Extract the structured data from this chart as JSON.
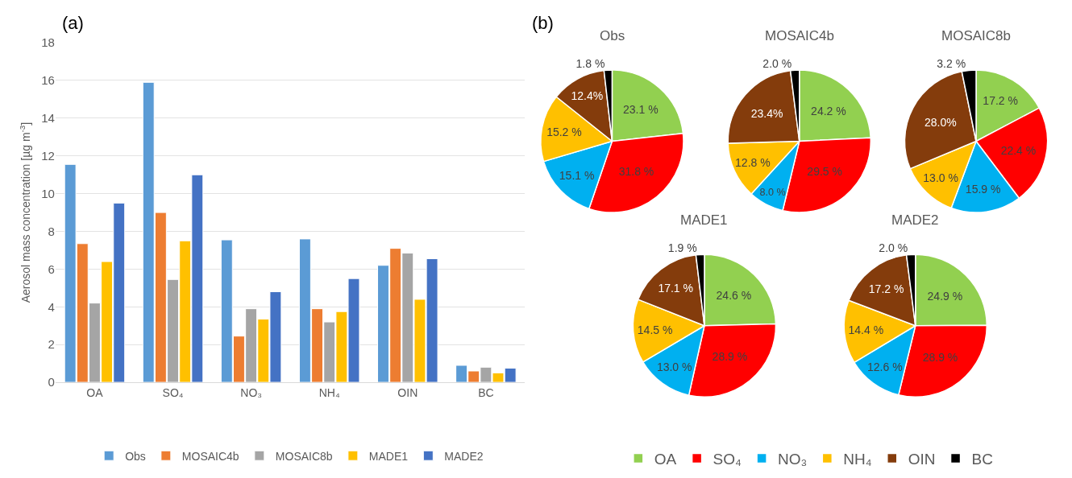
{
  "chart_data": [
    {
      "type": "bar",
      "title": "(a)",
      "ylabel": "Aerosol mass concentration [µg m$^{-3}$]",
      "categories": [
        "OA",
        "SO₄",
        "NO₃",
        "NH₄",
        "OIN",
        "BC"
      ],
      "ylim": [
        0,
        18
      ],
      "yticks": [
        0,
        2,
        4,
        6,
        8,
        10,
        12,
        14,
        16,
        18
      ],
      "grid": "y",
      "legend": "bottom",
      "series": [
        {
          "name": "Obs",
          "color": "#5b9bd5",
          "values": [
            11.55,
            15.9,
            7.55,
            7.6,
            6.2,
            0.9
          ]
        },
        {
          "name": "MOSAIC4b",
          "color": "#ed7d31",
          "values": [
            7.35,
            9.0,
            2.45,
            3.9,
            7.1,
            0.6
          ]
        },
        {
          "name": "MOSAIC8b",
          "color": "#a5a5a5",
          "values": [
            4.2,
            5.45,
            3.9,
            3.2,
            6.85,
            0.8
          ]
        },
        {
          "name": "MADE1",
          "color": "#ffc000",
          "values": [
            6.4,
            7.5,
            3.35,
            3.75,
            4.4,
            0.5
          ]
        },
        {
          "name": "MADE2",
          "color": "#4472c4",
          "values": [
            9.5,
            11.0,
            4.8,
            5.5,
            6.55,
            0.75
          ]
        }
      ]
    },
    {
      "type": "pie",
      "title": "Obs",
      "annotations": [
        "(b)"
      ],
      "categories": [
        "OA",
        "SO₄",
        "NO₃",
        "NH₄",
        "OIN",
        "BC"
      ],
      "values": [
        23.1,
        31.8,
        15.1,
        15.2,
        12.4,
        1.8
      ],
      "value_labels": [
        "23.1 %",
        "31.8 %",
        "15.1 %",
        "15.2 %",
        "12.4%",
        "1.8 %"
      ],
      "colors": [
        "#92d050",
        "#ff0000",
        "#00b0f0",
        "#ffc000",
        "#843c0c",
        "#000000"
      ],
      "legend": "bottom"
    },
    {
      "type": "pie",
      "title": "MOSAIC4b",
      "categories": [
        null,
        null,
        null,
        null,
        null,
        null
      ],
      "values": [
        24.2,
        29.5,
        8.0,
        12.8,
        23.4,
        2.0
      ],
      "value_labels": [
        "24.2 %",
        "29.5 %",
        "8.0 %",
        "12.8 %",
        "23.4%",
        "2.0 %"
      ],
      "colors": [
        "#92d050",
        "#ff0000",
        "#00b0f0",
        "#ffc000",
        "#843c0c",
        "#000000"
      ]
    },
    {
      "type": "pie",
      "title": "MOSAIC8b",
      "categories": [
        null,
        null,
        null,
        null,
        null,
        null
      ],
      "values": [
        17.2,
        22.4,
        15.9,
        13.0,
        28.0,
        3.2
      ],
      "value_labels": [
        "17.2 %",
        "22.4 %",
        "15.9 %",
        "13.0 %",
        "28.0%",
        "3.2 %"
      ],
      "colors": [
        "#92d050",
        "#ff0000",
        "#00b0f0",
        "#ffc000",
        "#843c0c",
        "#000000"
      ]
    },
    {
      "type": "pie",
      "title": "MADE1",
      "categories": [
        null,
        null,
        null,
        null,
        null,
        null
      ],
      "values": [
        24.6,
        28.9,
        13.0,
        14.5,
        17.1,
        1.9
      ],
      "value_labels": [
        "24.6 %",
        "28.9 %",
        "13.0 %",
        "14.5 %",
        "17.1 %",
        "1.9 %"
      ],
      "colors": [
        "#92d050",
        "#ff0000",
        "#00b0f0",
        "#ffc000",
        "#843c0c",
        "#000000"
      ]
    },
    {
      "type": "pie",
      "title": "MADE2",
      "categories": [
        null,
        null,
        null,
        null,
        null,
        null
      ],
      "values": [
        24.9,
        28.9,
        12.6,
        14.4,
        17.2,
        2.0
      ],
      "value_labels": [
        "24.9 %",
        "28.9 %",
        "12.6 %",
        "14.4 %",
        "17.2 %",
        "2.0 %"
      ],
      "colors": [
        "#92d050",
        "#ff0000",
        "#00b0f0",
        "#ffc000",
        "#843c0c",
        "#000000"
      ]
    }
  ]
}
